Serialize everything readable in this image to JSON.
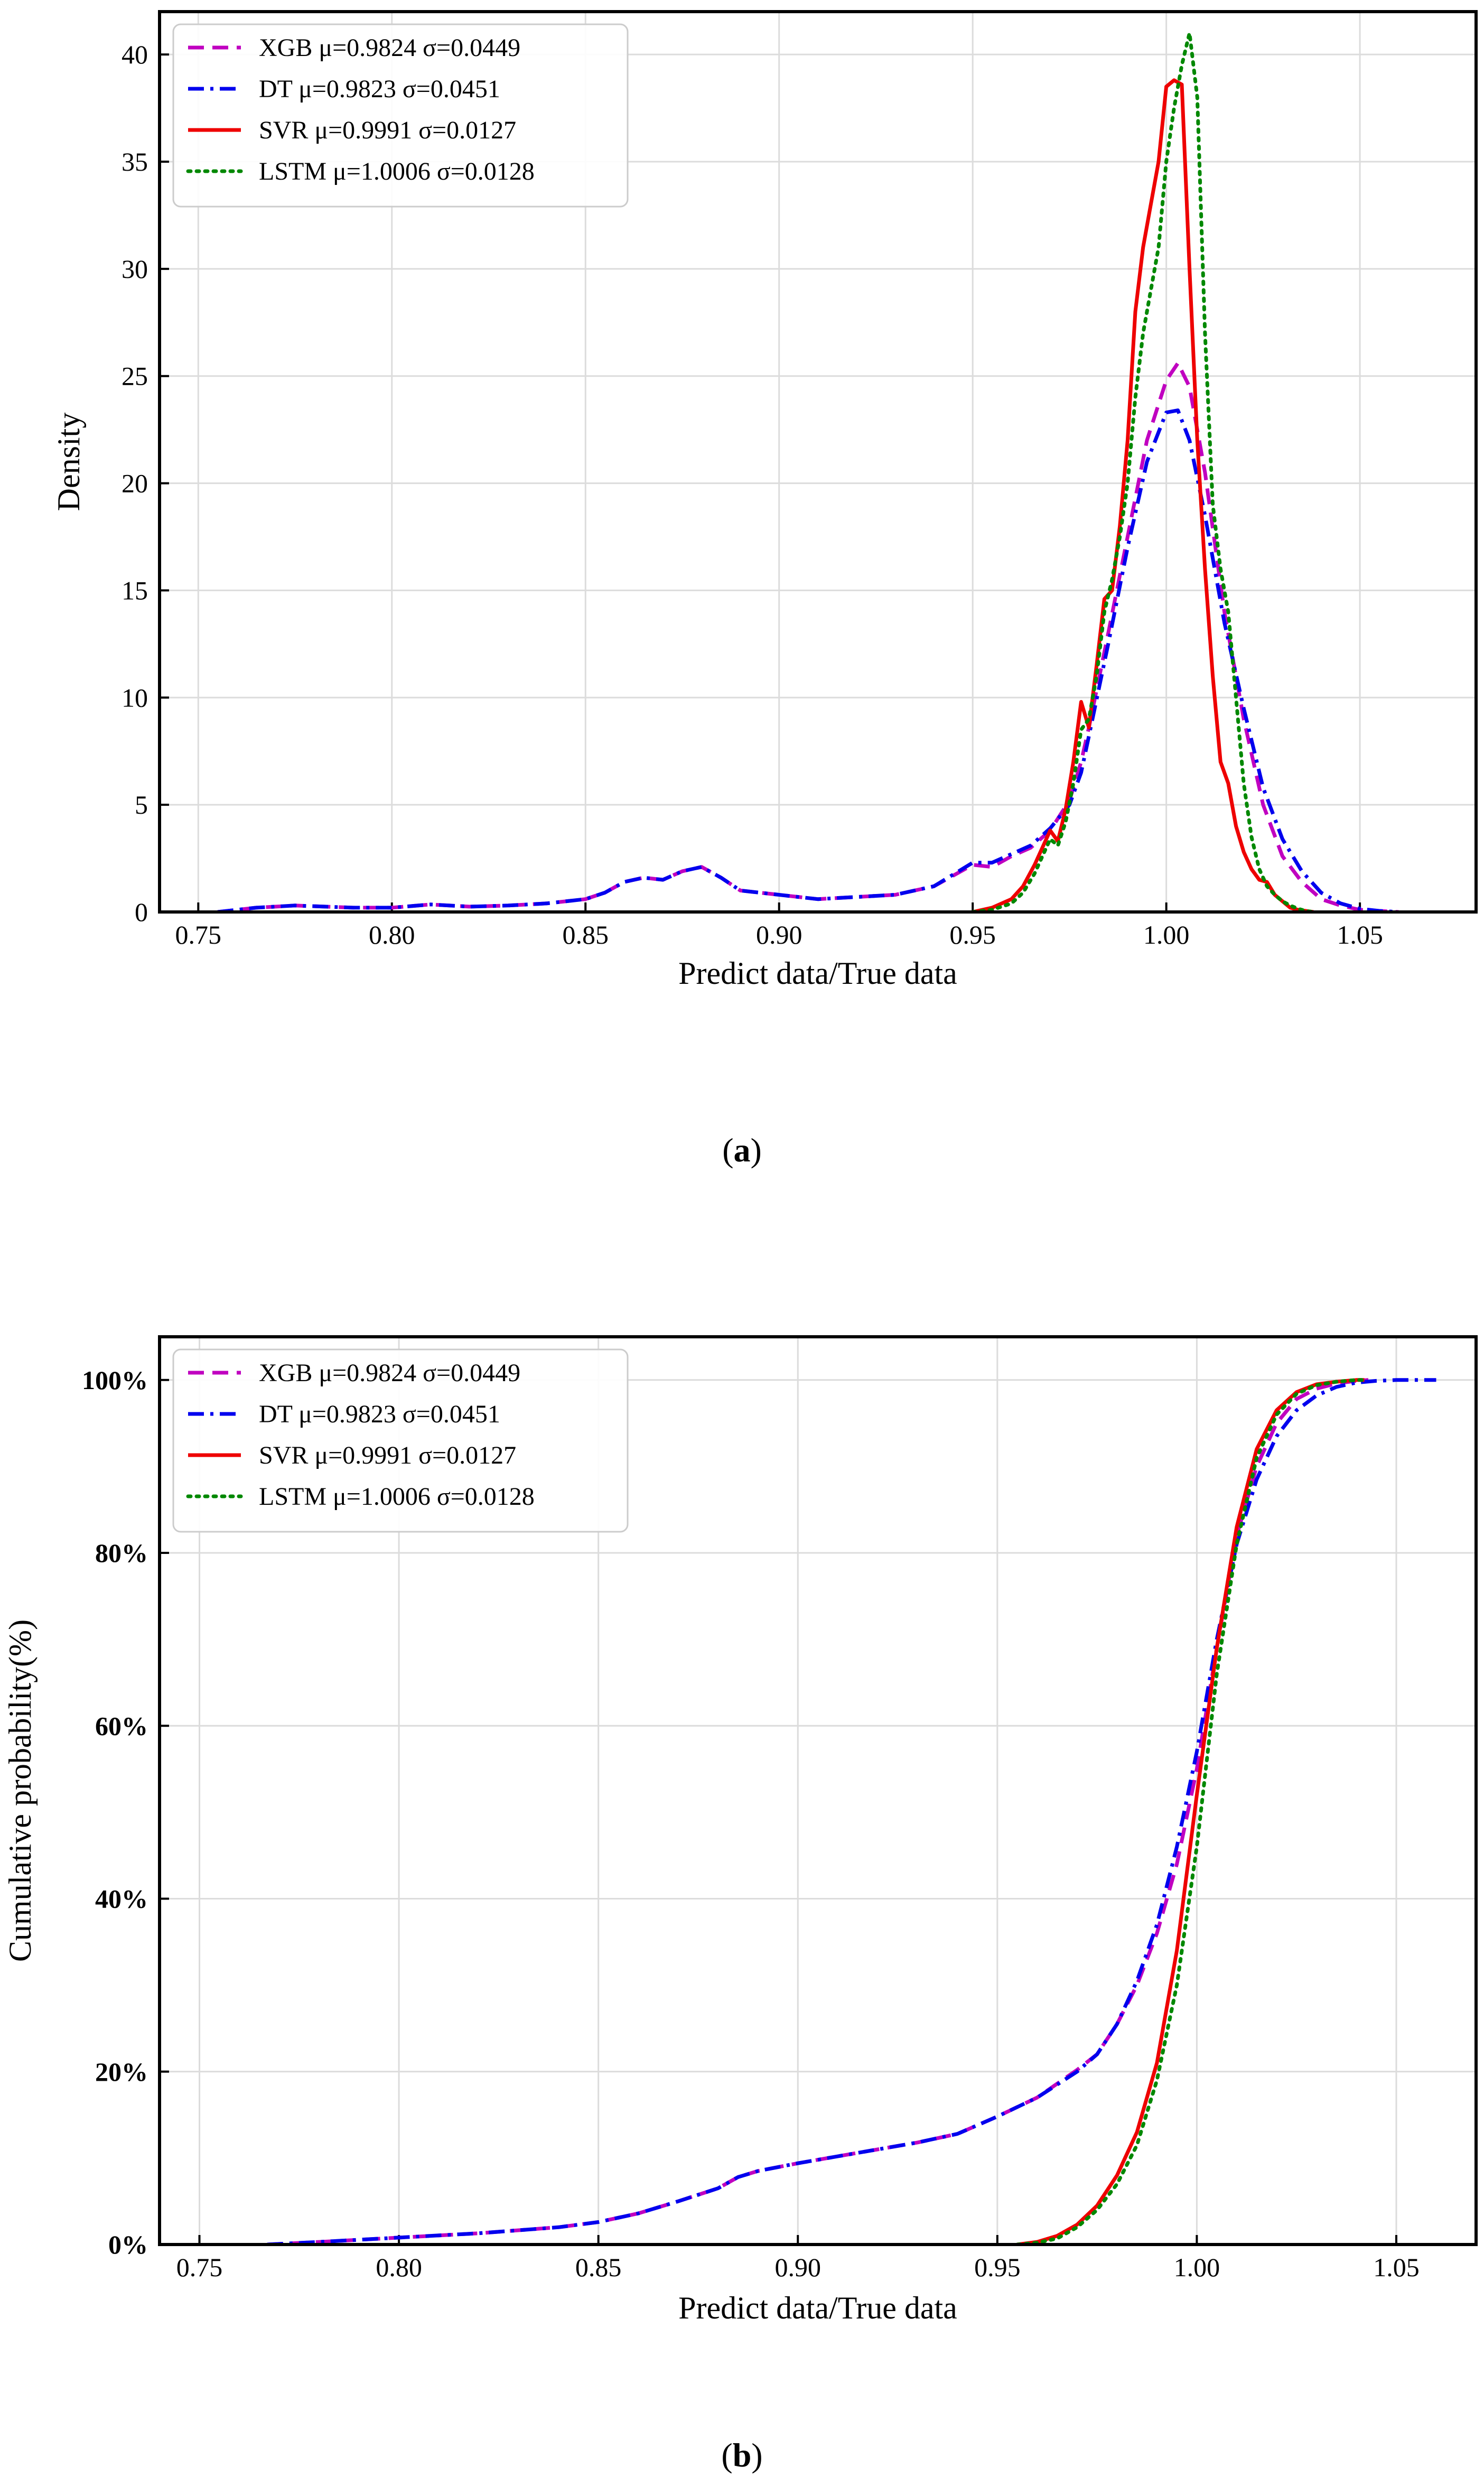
{
  "captions": {
    "a": "a",
    "b": "b"
  },
  "chart_data": [
    {
      "id": "a",
      "type": "line",
      "title": "",
      "xlabel": "Predict data/True data",
      "ylabel": "Density",
      "xlim": [
        0.74,
        1.08
      ],
      "ylim": [
        0,
        42
      ],
      "xticks": [
        0.75,
        0.8,
        0.85,
        0.9,
        0.95,
        1.0,
        1.05
      ],
      "xtick_labels": [
        "0.75",
        "0.80",
        "0.85",
        "0.90",
        "0.95",
        "1.00",
        "1.05"
      ],
      "yticks": [
        0,
        5,
        10,
        15,
        20,
        25,
        30,
        35,
        40
      ],
      "ytick_labels": [
        "0",
        "5",
        "10",
        "15",
        "20",
        "25",
        "30",
        "35",
        "40"
      ],
      "grid": true,
      "legend_position": "top-left",
      "series": [
        {
          "name": "XGB",
          "label": "XGB μ=0.9824 σ=0.0449",
          "color": "#c000c0",
          "style": "dashed",
          "x": [
            0.755,
            0.765,
            0.775,
            0.79,
            0.8,
            0.81,
            0.82,
            0.83,
            0.84,
            0.85,
            0.855,
            0.86,
            0.865,
            0.87,
            0.875,
            0.88,
            0.885,
            0.89,
            0.9,
            0.91,
            0.92,
            0.93,
            0.94,
            0.95,
            0.955,
            0.96,
            0.965,
            0.97,
            0.975,
            0.978,
            0.98,
            0.985,
            0.99,
            0.995,
            1.0,
            1.003,
            1.006,
            1.01,
            1.015,
            1.02,
            1.025,
            1.03,
            1.035,
            1.04,
            1.045,
            1.05,
            1.055,
            1.06
          ],
          "y": [
            0,
            0.2,
            0.3,
            0.2,
            0.2,
            0.35,
            0.25,
            0.3,
            0.4,
            0.6,
            0.9,
            1.4,
            1.6,
            1.5,
            1.9,
            2.1,
            1.6,
            1.0,
            0.8,
            0.6,
            0.7,
            0.8,
            1.2,
            2.2,
            2.1,
            2.6,
            3.0,
            3.8,
            5.2,
            7.0,
            8.6,
            13.0,
            17.5,
            22.0,
            24.8,
            25.6,
            24.5,
            20.5,
            14.0,
            9.0,
            5.0,
            2.6,
            1.4,
            0.6,
            0.3,
            0.1,
            0.05,
            0
          ]
        },
        {
          "name": "DT",
          "label": "DT μ=0.9823 σ=0.0451",
          "color": "#0000ee",
          "style": "dashdot",
          "x": [
            0.755,
            0.765,
            0.775,
            0.79,
            0.8,
            0.81,
            0.82,
            0.83,
            0.84,
            0.85,
            0.855,
            0.86,
            0.865,
            0.87,
            0.875,
            0.88,
            0.885,
            0.89,
            0.9,
            0.91,
            0.92,
            0.93,
            0.94,
            0.95,
            0.955,
            0.96,
            0.965,
            0.97,
            0.975,
            0.978,
            0.98,
            0.985,
            0.99,
            0.995,
            1.0,
            1.003,
            1.006,
            1.01,
            1.015,
            1.02,
            1.025,
            1.03,
            1.035,
            1.04,
            1.045,
            1.05,
            1.055,
            1.06
          ],
          "y": [
            0,
            0.2,
            0.3,
            0.2,
            0.2,
            0.35,
            0.25,
            0.3,
            0.4,
            0.6,
            0.9,
            1.4,
            1.6,
            1.5,
            1.9,
            2.1,
            1.6,
            1.0,
            0.8,
            0.6,
            0.7,
            0.8,
            1.2,
            2.3,
            2.3,
            2.7,
            3.1,
            3.9,
            5.0,
            6.5,
            8.2,
            12.5,
            17.0,
            21.0,
            23.3,
            23.4,
            22.0,
            18.5,
            13.5,
            9.5,
            5.8,
            3.4,
            1.9,
            0.9,
            0.4,
            0.15,
            0.05,
            0
          ]
        },
        {
          "name": "SVR",
          "label": "SVR μ=0.9991 σ=0.0127",
          "color": "#ee0000",
          "style": "solid",
          "x": [
            0.95,
            0.955,
            0.96,
            0.963,
            0.966,
            0.968,
            0.97,
            0.972,
            0.974,
            0.976,
            0.978,
            0.98,
            0.982,
            0.984,
            0.986,
            0.988,
            0.99,
            0.992,
            0.994,
            0.996,
            0.998,
            1.0,
            1.002,
            1.004,
            1.006,
            1.008,
            1.01,
            1.012,
            1.014,
            1.016,
            1.018,
            1.02,
            1.022,
            1.024,
            1.026,
            1.028,
            1.03,
            1.032,
            1.034,
            1.036,
            1.038
          ],
          "y": [
            0,
            0.2,
            0.6,
            1.2,
            2.2,
            3.0,
            3.8,
            3.3,
            4.8,
            7.0,
            9.8,
            8.6,
            11.5,
            14.6,
            15.0,
            18.0,
            22.0,
            28.0,
            31.0,
            33.0,
            35.0,
            38.5,
            38.8,
            38.6,
            30.0,
            22.0,
            16.0,
            11.0,
            7.0,
            6.0,
            4.0,
            2.8,
            2.0,
            1.5,
            1.4,
            0.8,
            0.5,
            0.2,
            0.1,
            0.05,
            0
          ]
        },
        {
          "name": "LSTM",
          "label": "LSTM μ=1.0006 σ=0.0128",
          "color": "#008800",
          "style": "dotted",
          "x": [
            0.95,
            0.955,
            0.96,
            0.963,
            0.966,
            0.968,
            0.97,
            0.972,
            0.974,
            0.976,
            0.978,
            0.98,
            0.982,
            0.984,
            0.986,
            0.988,
            0.99,
            0.992,
            0.994,
            0.996,
            0.998,
            1.0,
            1.002,
            1.004,
            1.006,
            1.008,
            1.01,
            1.012,
            1.014,
            1.016,
            1.018,
            1.02,
            1.022,
            1.024,
            1.026,
            1.028,
            1.03,
            1.032,
            1.034,
            1.036,
            1.038
          ],
          "y": [
            0,
            0.1,
            0.4,
            0.9,
            1.8,
            2.6,
            3.4,
            3.1,
            4.2,
            6.0,
            8.5,
            9.0,
            11.0,
            14.0,
            15.5,
            17.5,
            20.0,
            24.0,
            27.0,
            29.0,
            31.0,
            35.0,
            37.5,
            39.5,
            41.0,
            38.0,
            27.0,
            19.0,
            16.0,
            14.0,
            10.0,
            6.0,
            3.5,
            2.0,
            1.2,
            0.8,
            0.5,
            0.3,
            0.15,
            0.05,
            0
          ]
        }
      ]
    },
    {
      "id": "b",
      "type": "line",
      "title": "",
      "xlabel": "Predict data/True data",
      "ylabel": "Cumulative probability(%)",
      "xlim": [
        0.74,
        1.07
      ],
      "ylim": [
        0,
        105
      ],
      "xticks": [
        0.75,
        0.8,
        0.85,
        0.9,
        0.95,
        1.0,
        1.05
      ],
      "xtick_labels": [
        "0.75",
        "0.80",
        "0.85",
        "0.90",
        "0.95",
        "1.00",
        "1.05"
      ],
      "yticks": [
        0,
        20,
        40,
        60,
        80,
        100
      ],
      "ytick_labels": [
        "0%",
        "20%",
        "40%",
        "60%",
        "80%",
        "100%"
      ],
      "grid": true,
      "legend_position": "top-left",
      "series": [
        {
          "name": "XGB",
          "label": "XGB μ=0.9824 σ=0.0449",
          "color": "#c000c0",
          "style": "dashed",
          "x": [
            0.767,
            0.78,
            0.8,
            0.82,
            0.84,
            0.85,
            0.86,
            0.87,
            0.88,
            0.885,
            0.89,
            0.9,
            0.91,
            0.92,
            0.93,
            0.94,
            0.95,
            0.96,
            0.97,
            0.975,
            0.98,
            0.985,
            0.99,
            0.995,
            1.0,
            1.005,
            1.01,
            1.015,
            1.02,
            1.025,
            1.03,
            1.035,
            1.04,
            1.043
          ],
          "y": [
            0,
            0.3,
            0.8,
            1.3,
            2.0,
            2.6,
            3.6,
            5.0,
            6.5,
            7.8,
            8.5,
            9.4,
            10.2,
            11.0,
            11.8,
            12.8,
            14.8,
            17.0,
            20.2,
            22.0,
            25.5,
            30.0,
            36.0,
            44.0,
            55.0,
            69.0,
            82.0,
            90.0,
            95.0,
            97.8,
            99.0,
            99.6,
            99.9,
            100
          ]
        },
        {
          "name": "DT",
          "label": "DT μ=0.9823 σ=0.0451",
          "color": "#0000ee",
          "style": "dashdot",
          "x": [
            0.767,
            0.78,
            0.8,
            0.82,
            0.84,
            0.85,
            0.86,
            0.87,
            0.88,
            0.885,
            0.89,
            0.9,
            0.91,
            0.92,
            0.93,
            0.94,
            0.95,
            0.96,
            0.97,
            0.975,
            0.98,
            0.985,
            0.99,
            0.995,
            1.0,
            1.005,
            1.01,
            1.015,
            1.02,
            1.025,
            1.03,
            1.035,
            1.04,
            1.045,
            1.05,
            1.055,
            1.06
          ],
          "y": [
            0,
            0.3,
            0.8,
            1.3,
            2.0,
            2.6,
            3.6,
            5.0,
            6.5,
            7.8,
            8.5,
            9.4,
            10.2,
            11.0,
            11.8,
            12.8,
            14.8,
            17.0,
            20.0,
            22.0,
            25.5,
            30.5,
            37.0,
            46.0,
            57.0,
            70.0,
            81.0,
            88.5,
            93.5,
            96.5,
            98.2,
            99.2,
            99.7,
            99.9,
            100,
            100,
            100
          ]
        },
        {
          "name": "SVR",
          "label": "SVR μ=0.9991 σ=0.0127",
          "color": "#ee0000",
          "style": "solid",
          "x": [
            0.955,
            0.96,
            0.965,
            0.97,
            0.975,
            0.98,
            0.985,
            0.99,
            0.995,
            1.0,
            1.005,
            1.01,
            1.015,
            1.02,
            1.025,
            1.03,
            1.035,
            1.04,
            1.042
          ],
          "y": [
            0,
            0.3,
            1.0,
            2.3,
            4.5,
            8.0,
            13.0,
            21.0,
            34.0,
            52.0,
            69.0,
            83.0,
            92.0,
            96.5,
            98.6,
            99.5,
            99.8,
            100,
            100
          ]
        },
        {
          "name": "LSTM",
          "label": "LSTM μ=1.0006 σ=0.0128",
          "color": "#008800",
          "style": "dotted",
          "x": [
            0.955,
            0.96,
            0.965,
            0.97,
            0.975,
            0.98,
            0.985,
            0.99,
            0.995,
            1.0,
            1.005,
            1.01,
            1.015,
            1.02,
            1.025,
            1.03,
            1.035,
            1.04,
            1.042
          ],
          "y": [
            0,
            0.2,
            0.7,
            2.0,
            4.0,
            7.0,
            11.5,
            19.0,
            30.0,
            46.0,
            66.0,
            81.0,
            91.0,
            96.0,
            98.4,
            99.4,
            99.8,
            100,
            100
          ]
        }
      ]
    }
  ]
}
